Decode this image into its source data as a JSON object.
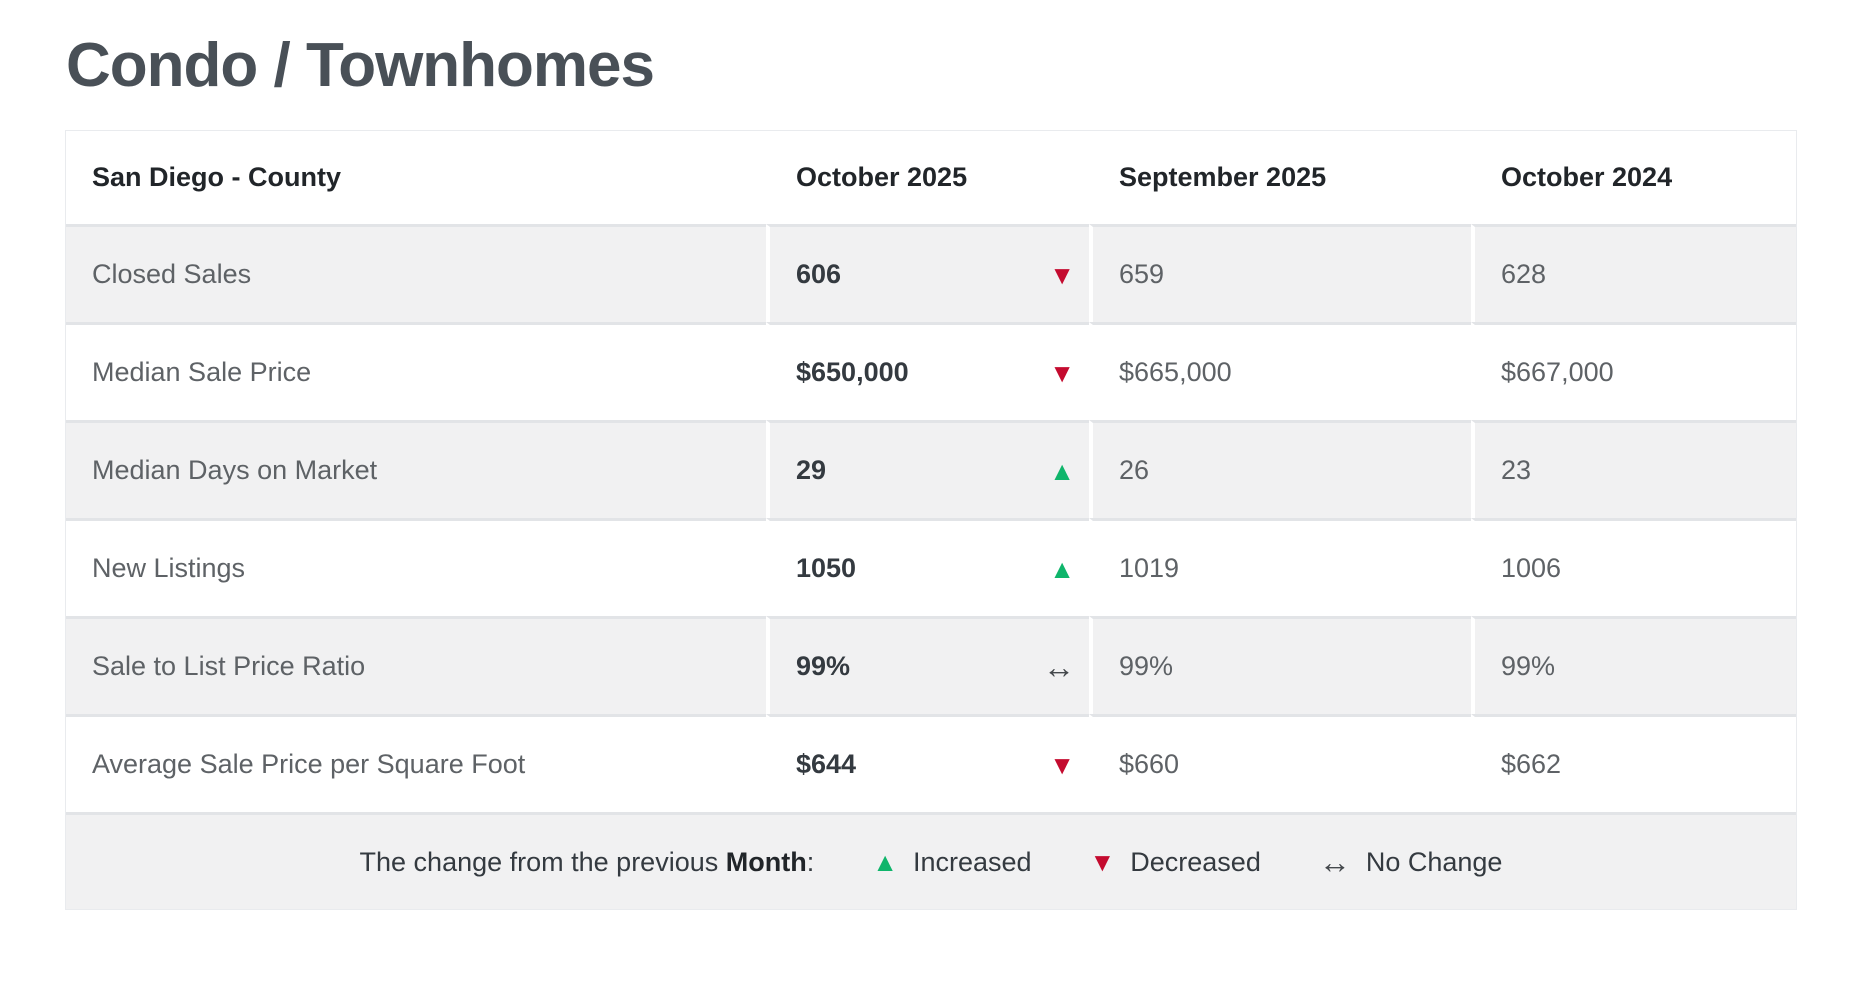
{
  "page": {
    "title": "Condo / Townhomes"
  },
  "icons": {
    "up": "▲",
    "down": "▼",
    "flat": "↔"
  },
  "colors": {
    "increase_green": "#0fb56b",
    "decrease_red": "#c40b2f",
    "no_change_gray": "#45494d",
    "title_color": "#495057",
    "row_stripe": "#f1f1f2"
  },
  "chart_data": {
    "type": "table",
    "title": "Condo / Townhomes",
    "columns": [
      "San Diego - County",
      "October 2025",
      "September 2025",
      "October 2024"
    ],
    "rows": [
      {
        "label": "Closed Sales",
        "values": [
          "606",
          "659",
          "628"
        ],
        "change_from_prev_month": "decreased"
      },
      {
        "label": "Median Sale Price",
        "values": [
          "$650,000",
          "$665,000",
          "$667,000"
        ],
        "change_from_prev_month": "decreased"
      },
      {
        "label": "Median Days on Market",
        "values": [
          "29",
          "26",
          "23"
        ],
        "change_from_prev_month": "increased"
      },
      {
        "label": "New Listings",
        "values": [
          "1050",
          "1019",
          "1006"
        ],
        "change_from_prev_month": "increased"
      },
      {
        "label": "Sale to List Price Ratio",
        "values": [
          "99%",
          "99%",
          "99%"
        ],
        "change_from_prev_month": "no_change"
      },
      {
        "label": "Average Sale Price per Square Foot",
        "values": [
          "$644",
          "$660",
          "$662"
        ],
        "change_from_prev_month": "decreased"
      }
    ],
    "legend": {
      "prefix": "The change from the previous ",
      "period_word": "Month",
      "colon": ":",
      "increased_label": "Increased",
      "decreased_label": "Decreased",
      "no_change_label": "No Change"
    }
  }
}
